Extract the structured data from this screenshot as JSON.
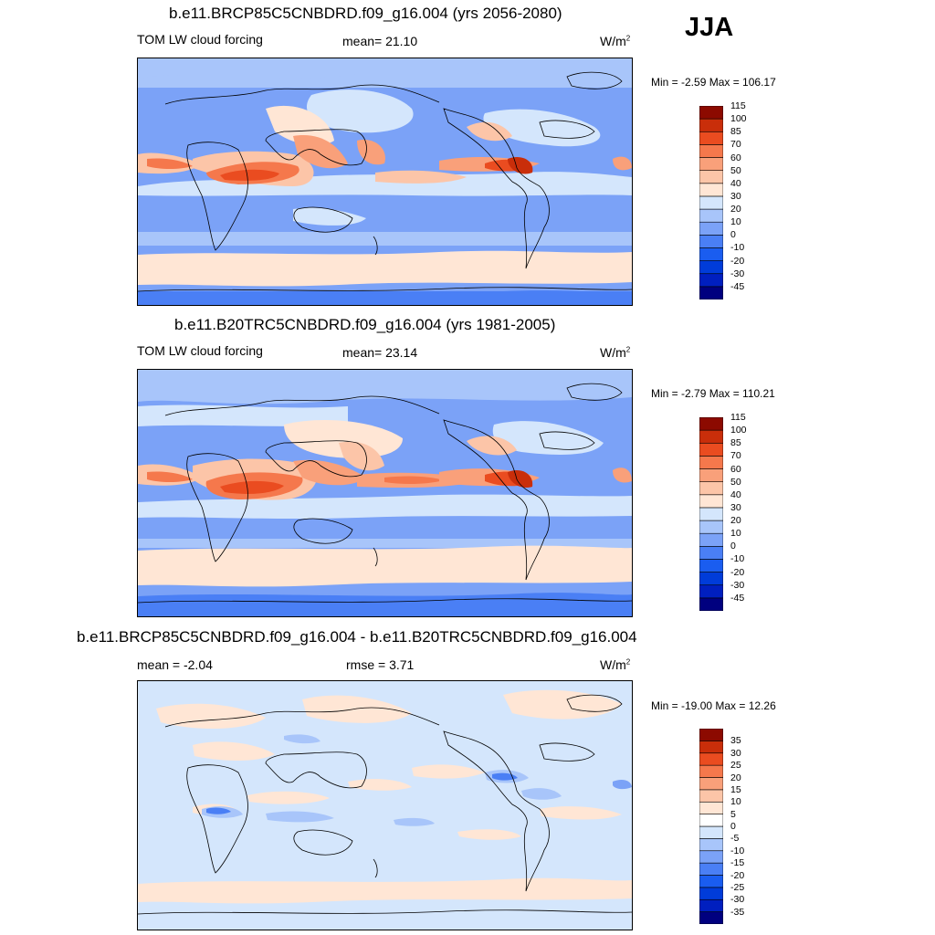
{
  "season": "JJA",
  "panels": [
    {
      "title": "b.e11.BRCP85C5CNBDRD.f09_g16.004 (yrs 2056-2080)",
      "left_label": "TOM LW cloud forcing",
      "stat_label": "mean=",
      "stat_value": "21.10",
      "units": "W/m",
      "units_sup": "2",
      "minmax": "Min =  -2.59 Max = 106.17",
      "palette": [
        "#00007f",
        "#001fbf",
        "#003cd9",
        "#1a5df0",
        "#4a7ff5",
        "#7ba2f7",
        "#a8c5fa",
        "#d4e6fc",
        "#ffe6d5",
        "#fcc5a8",
        "#f9a07a",
        "#f5784c",
        "#ea4c20",
        "#c92e0a",
        "#8c0a00"
      ],
      "ticks": [
        "-45",
        "-30",
        "-20",
        "-10",
        "0",
        "10",
        "20",
        "30",
        "40",
        "50",
        "60",
        "70",
        "85",
        "100",
        "115"
      ]
    },
    {
      "title": "b.e11.B20TRC5CNBDRD.f09_g16.004 (yrs 1981-2005)",
      "left_label": "TOM LW cloud forcing",
      "stat_label": "mean=",
      "stat_value": "23.14",
      "units": "W/m",
      "units_sup": "2",
      "minmax": "Min =  -2.79 Max = 110.21",
      "palette": [
        "#00007f",
        "#001fbf",
        "#003cd9",
        "#1a5df0",
        "#4a7ff5",
        "#7ba2f7",
        "#a8c5fa",
        "#d4e6fc",
        "#ffe6d5",
        "#fcc5a8",
        "#f9a07a",
        "#f5784c",
        "#ea4c20",
        "#c92e0a",
        "#8c0a00"
      ],
      "ticks": [
        "-45",
        "-30",
        "-20",
        "-10",
        "0",
        "10",
        "20",
        "30",
        "40",
        "50",
        "60",
        "70",
        "85",
        "100",
        "115"
      ]
    },
    {
      "title": "b.e11.BRCP85C5CNBDRD.f09_g16.004 - b.e11.B20TRC5CNBDRD.f09_g16.004",
      "left_label": "mean =  -2.04",
      "stat_label": "rmse =",
      "stat_value": "3.71",
      "units": "W/m",
      "units_sup": "2",
      "minmax": "Min = -19.00 Max =  12.26",
      "palette": [
        "#00007f",
        "#001fbf",
        "#003cd9",
        "#1a5df0",
        "#4a7ff5",
        "#7ba2f7",
        "#a8c5fa",
        "#d4e6fc",
        "#ffffff",
        "#ffe6d5",
        "#fcc5a8",
        "#f9a07a",
        "#f5784c",
        "#ea4c20",
        "#c92e0a",
        "#8c0a00"
      ],
      "ticks": [
        "-35",
        "-30",
        "-25",
        "-20",
        "-15",
        "-10",
        "-5",
        "0",
        "5",
        "10",
        "15",
        "20",
        "25",
        "30",
        "35"
      ]
    }
  ]
}
